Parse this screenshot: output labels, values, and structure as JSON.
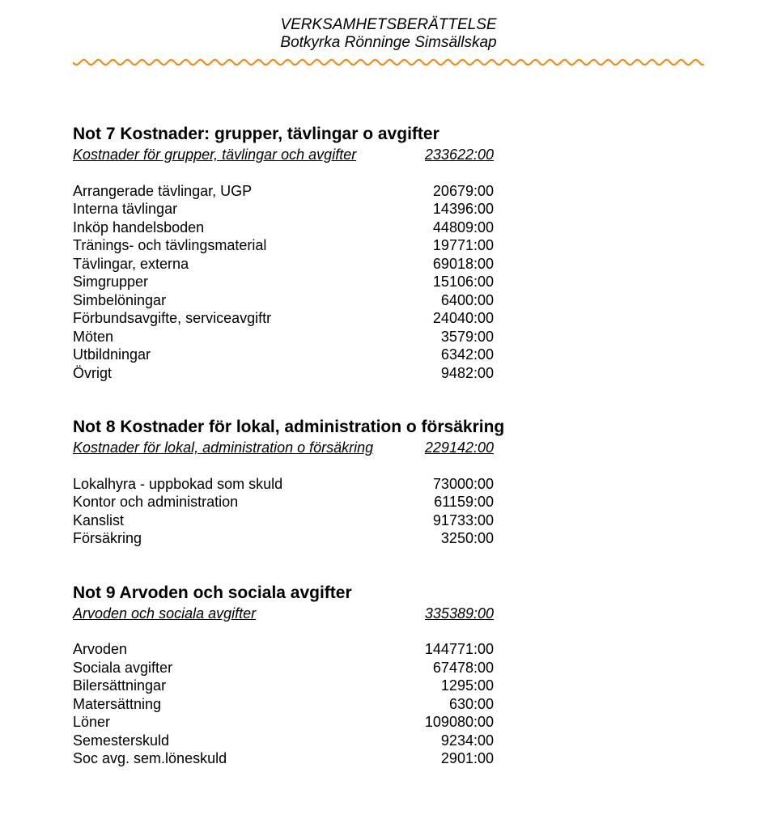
{
  "header": {
    "line1": "VERKSAMHETSBERÄTTELSE",
    "line2": "Botkyrka Rönninge Simsällskap"
  },
  "divider": {
    "stroke_color": "#f28c1a",
    "stroke_width": 2.2
  },
  "sections": [
    {
      "title": "Not 7  Kostnader: grupper, tävlingar o avgifter",
      "sub_label": "Kostnader för grupper, tävlingar och avgifter",
      "sub_value": "233622:00",
      "items": [
        {
          "label": "Arrangerade tävlingar, UGP",
          "value": "20679:00"
        },
        {
          "label": "Interna tävlingar",
          "value": "14396:00"
        },
        {
          "label": "Inköp handelsboden",
          "value": "44809:00"
        },
        {
          "label": "Tränings- och tävlingsmaterial",
          "value": "19771:00"
        },
        {
          "label": "Tävlingar, externa",
          "value": "69018:00"
        },
        {
          "label": "Simgrupper",
          "value": "15106:00"
        },
        {
          "label": "Simbelöningar",
          "value": "6400:00"
        },
        {
          "label": "Förbundsavgifte, serviceavgiftr",
          "value": "24040:00"
        },
        {
          "label": "Möten",
          "value": "3579:00"
        },
        {
          "label": "Utbildningar",
          "value": "6342:00"
        },
        {
          "label": "Övrigt",
          "value": "9482:00"
        }
      ]
    },
    {
      "title": "Not 8  Kostnader för lokal, administration o försäkring",
      "sub_label": "Kostnader för lokal, administration o försäkring",
      "sub_value": "229142:00",
      "items": [
        {
          "label": "Lokalhyra - uppbokad som skuld",
          "value": "73000:00"
        },
        {
          "label": "Kontor och administration",
          "value": "61159:00"
        },
        {
          "label": "Kanslist",
          "value": "91733:00"
        },
        {
          "label": "Försäkring",
          "value": "3250:00"
        }
      ]
    },
    {
      "title": "Not 9  Arvoden och sociala avgifter",
      "sub_label": "Arvoden och sociala avgifter",
      "sub_value": "335389:00",
      "items": [
        {
          "label": "Arvoden",
          "value": "144771:00"
        },
        {
          "label": "Sociala avgifter",
          "value": "67478:00"
        },
        {
          "label": "Bilersättningar",
          "value": "1295:00"
        },
        {
          "label": "Matersättning",
          "value": "630:00"
        },
        {
          "label": "Löner",
          "value": "109080:00"
        },
        {
          "label": "Semesterskuld",
          "value": "9234:00"
        },
        {
          "label": "Soc avg. sem.löneskuld",
          "value": "2901:00"
        }
      ]
    }
  ]
}
